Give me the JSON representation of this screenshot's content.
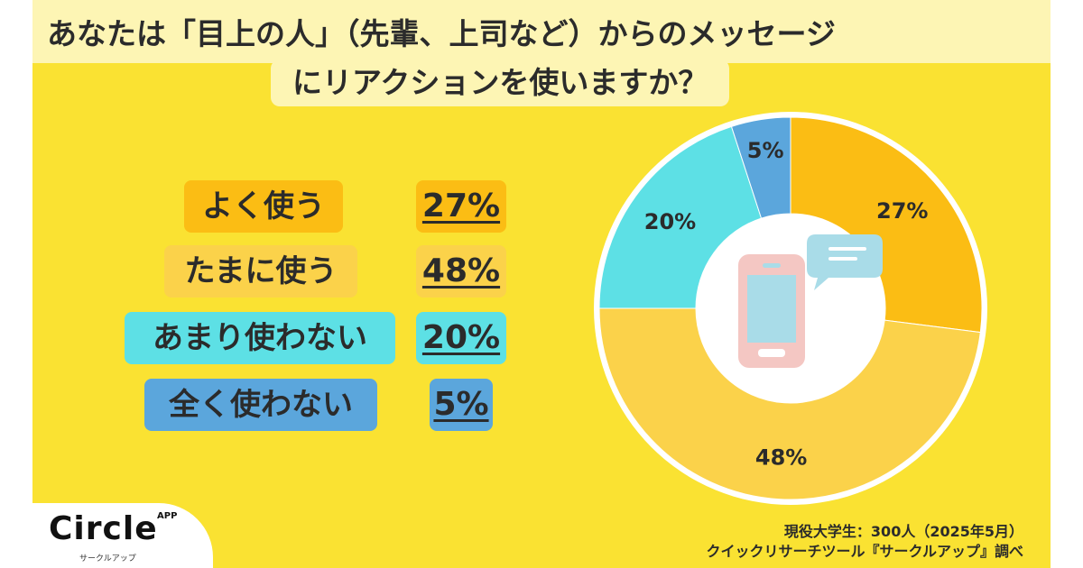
{
  "title": {
    "line1": "あなたは「目上の人」（先輩、上司など）からのメッセージ",
    "line2": "にリアクションを使いますか？"
  },
  "legend": [
    {
      "label": "よく使う",
      "pct": "27%"
    },
    {
      "label": "たまに使う",
      "pct": "48%"
    },
    {
      "label": "あまり使わない",
      "pct": "20%"
    },
    {
      "label": "全く使わない",
      "pct": "5%"
    }
  ],
  "chart_data": {
    "type": "pie",
    "categories": [
      "よく使う",
      "たまに使う",
      "あまり使わない",
      "全く使わない"
    ],
    "values": [
      27,
      48,
      20,
      5
    ],
    "data_labels": [
      "27%",
      "48%",
      "20%",
      "5%"
    ],
    "colors": [
      "#fbbd14",
      "#fbd24a",
      "#5de0e5",
      "#5ba6dc"
    ],
    "donut": true,
    "start": "12 o'clock, clockwise"
  },
  "colors": {
    "background": "#fae232",
    "title_band": "#fdf5b4",
    "label_bg_often": "#fbbd14",
    "label_bg_sometimes": "#fbd24a",
    "label_bg_rarely": "#5de0e5",
    "label_bg_never": "#5ba6dc"
  },
  "center_icon": "smartphone-with-speech-bubble-icon",
  "logo": {
    "name": "Circle",
    "badge": "APP",
    "sub": "サークルアップ"
  },
  "source": {
    "line1": "現役大学生：300人（2025年5月）",
    "line2": "クイックリサーチツール『サークルアップ』調べ"
  }
}
